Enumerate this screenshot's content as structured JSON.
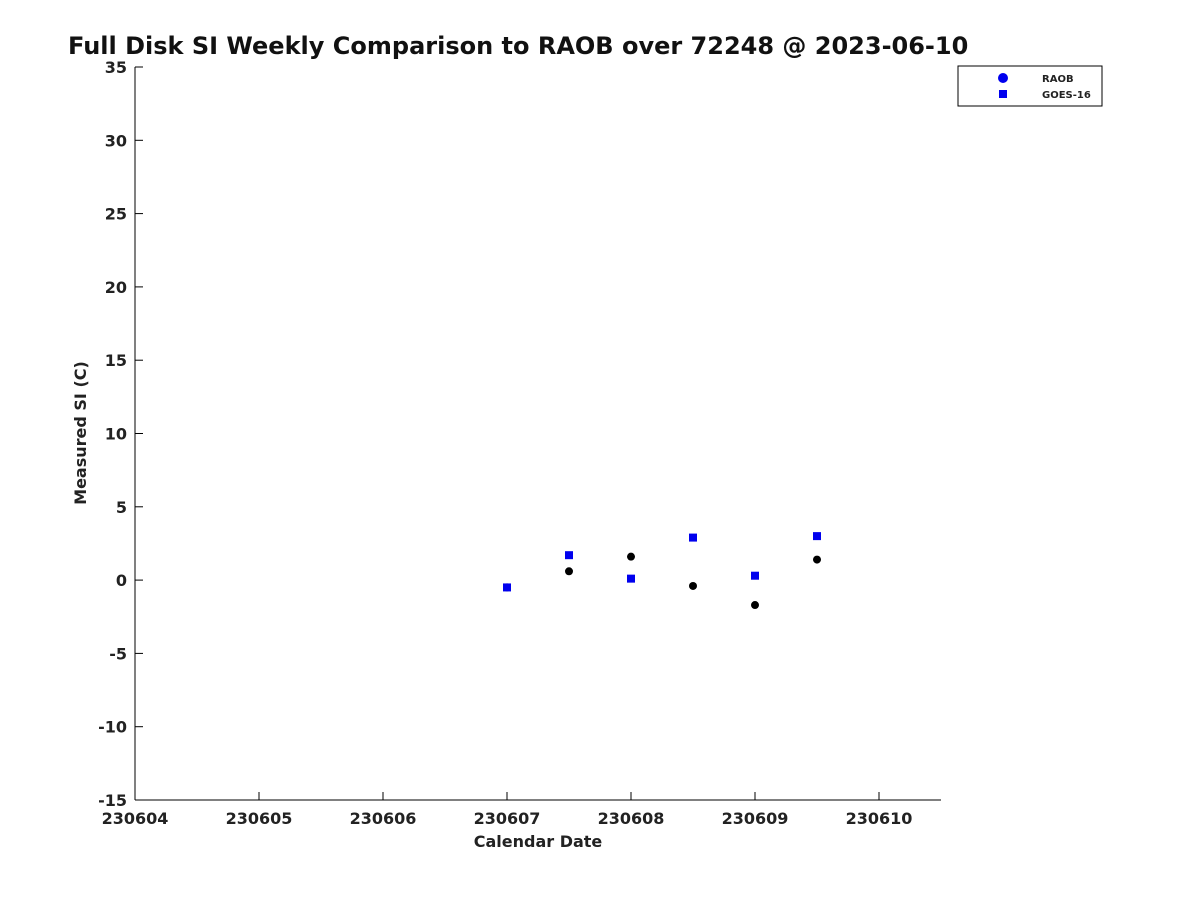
{
  "chart_data": {
    "type": "scatter",
    "title": "Full Disk SI Weekly Comparison to RAOB over 72248 @ 2023-06-10",
    "xlabel": "Calendar Date",
    "ylabel": "Measured SI (C)",
    "xlim": [
      0,
      6.5
    ],
    "ylim": [
      -15,
      35
    ],
    "x_ticks": [
      {
        "value": 0,
        "label": "230604"
      },
      {
        "value": 1,
        "label": "230605"
      },
      {
        "value": 2,
        "label": "230606"
      },
      {
        "value": 3,
        "label": "230607"
      },
      {
        "value": 4,
        "label": "230608"
      },
      {
        "value": 5,
        "label": "230609"
      },
      {
        "value": 6,
        "label": "230610"
      }
    ],
    "y_ticks": [
      35,
      30,
      25,
      20,
      15,
      10,
      5,
      0,
      -5,
      -10,
      -15
    ],
    "legend_position": "top-right",
    "series": [
      {
        "name": "RAOB",
        "marker": "circle",
        "color": "#000000",
        "legend_color": "#0000ee",
        "points": [
          {
            "x": 3.0,
            "y": -0.5
          },
          {
            "x": 3.5,
            "y": 0.6
          },
          {
            "x": 4.0,
            "y": 1.6
          },
          {
            "x": 4.5,
            "y": -0.4
          },
          {
            "x": 5.0,
            "y": -1.7
          },
          {
            "x": 5.5,
            "y": 1.4
          }
        ]
      },
      {
        "name": "GOES-16",
        "marker": "square",
        "color": "#0000ee",
        "legend_color": "#0000ee",
        "points": [
          {
            "x": 3.0,
            "y": -0.5
          },
          {
            "x": 3.5,
            "y": 1.7
          },
          {
            "x": 4.0,
            "y": 0.1
          },
          {
            "x": 4.5,
            "y": 2.9
          },
          {
            "x": 5.0,
            "y": 0.3
          },
          {
            "x": 5.5,
            "y": 3.0
          }
        ]
      }
    ]
  }
}
